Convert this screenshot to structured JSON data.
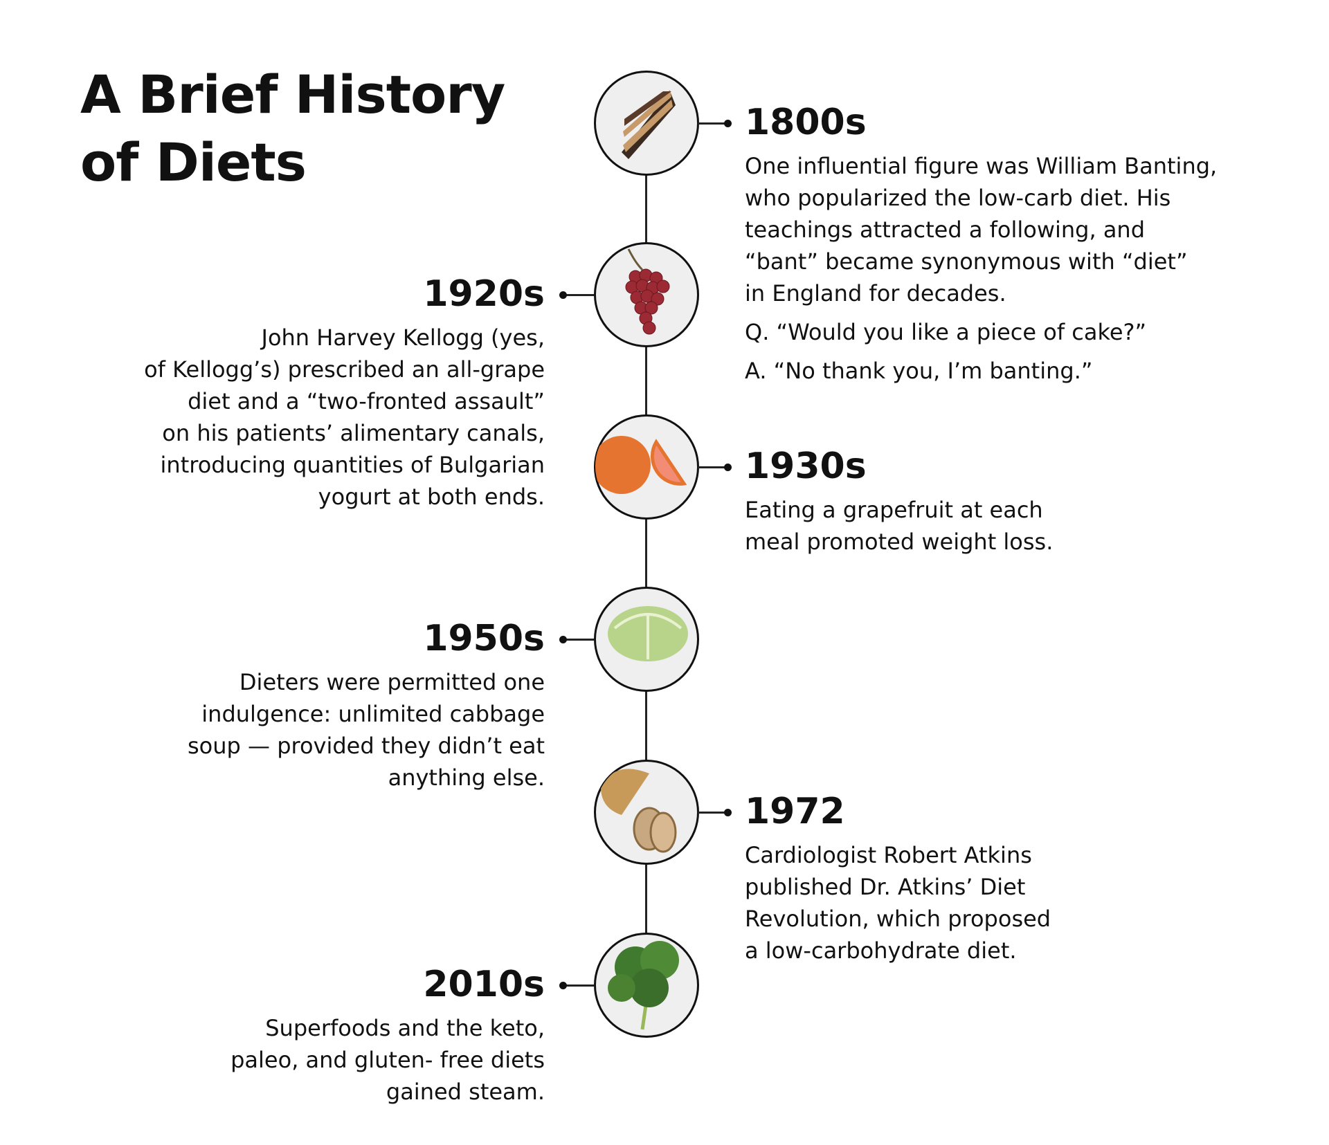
{
  "title_line1": "A Brief History",
  "title_line2": "of Diets",
  "entries": [
    {
      "year": "1800s",
      "icon": "cake-icon",
      "side": "right",
      "lines": [
        "One influential figure was William Banting,",
        "who popularized the low-carb diet. His",
        "teachings attracted a following, and",
        "“bant” became synonymous with “diet”",
        "in England for decades."
      ],
      "q": "Q. “Would you like a piece of cake?”",
      "a": "A. “No thank you, I’m banting.”"
    },
    {
      "year": "1920s",
      "icon": "grapes-icon",
      "side": "left",
      "lines": [
        "John Harvey Kellogg (yes,",
        "of Kellogg’s) prescribed an all-grape",
        "diet and a “two-fronted assault”",
        "on his patients’ alimentary canals,",
        "introducing quantities of Bulgarian",
        "yogurt at both ends."
      ]
    },
    {
      "year": "1930s",
      "icon": "grapefruit-icon",
      "side": "right",
      "lines": [
        "Eating a grapefruit at each",
        "meal promoted weight loss."
      ]
    },
    {
      "year": "1950s",
      "icon": "cabbage-icon",
      "side": "left",
      "lines": [
        "Dieters were permitted one",
        "indulgence: unlimited cabbage",
        "soup — provided they didn’t eat",
        "anything else."
      ]
    },
    {
      "year": "1972",
      "icon": "bread-icon",
      "side": "right",
      "lines": [
        "Cardiologist Robert Atkins",
        "published Dr. Atkins’ Diet",
        "Revolution, which proposed",
        "a low-carbohydrate diet."
      ]
    },
    {
      "year": "2010s",
      "icon": "kale-icon",
      "side": "left",
      "lines": [
        "Superfoods and the keto,",
        "paleo, and gluten- free diets",
        "gained steam."
      ]
    }
  ]
}
